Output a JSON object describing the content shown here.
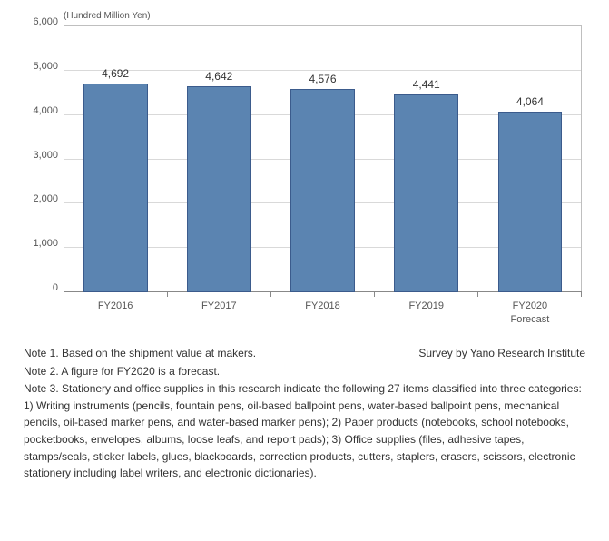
{
  "chart": {
    "type": "bar",
    "y_axis_title": "(Hundred Million Yen)",
    "categories": [
      "FY2016",
      "FY2017",
      "FY2018",
      "FY2019",
      "FY2020\nForecast"
    ],
    "values": [
      4692,
      4642,
      4576,
      4441,
      4064
    ],
    "value_labels": [
      "4,692",
      "4,642",
      "4,576",
      "4,441",
      "4,064"
    ],
    "bar_color": "#5b84b1",
    "bar_border_color": "#3b5b8c",
    "ylim": [
      0,
      6000
    ],
    "yticks": [
      0,
      1000,
      2000,
      3000,
      4000,
      5000,
      6000
    ],
    "ytick_labels": [
      "0",
      "1,000",
      "2,000",
      "3,000",
      "4,000",
      "5,000",
      "6,000"
    ],
    "grid_color": "#d9d9d9",
    "background_color": "#ffffff",
    "value_fontsize": 12,
    "tick_fontsize": 11,
    "title_fontsize": 10
  },
  "notes": {
    "note1": "Note 1. Based on the shipment value at makers.",
    "survey": "Survey by Yano Research Institute",
    "note2": "Note 2. A figure for FY2020 is a forecast.",
    "note3": "Note 3. Stationery and office supplies in this research indicate the following 27 items classified into three categories: 1) Writing instruments (pencils, fountain pens, oil-based ballpoint pens, water-based ballpoint pens, mechanical pencils, oil-based marker pens, and water-based marker pens); 2) Paper products (notebooks, school notebooks, pocketbooks, envelopes, albums, loose leafs, and report pads); 3) Office supplies (files, adhesive tapes, stamps/seals, sticker labels, glues, blackboards, correction products, cutters, staplers, erasers, scissors, electronic stationery including label writers, and electronic dictionaries)."
  }
}
